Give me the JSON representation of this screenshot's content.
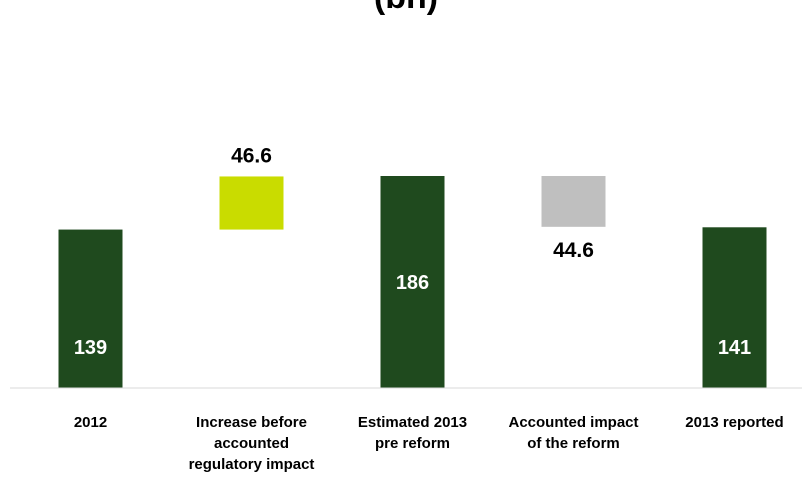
{
  "chart_data": {
    "type": "bar",
    "subtype": "waterfall",
    "title": "(bn)",
    "xlabel": "",
    "ylabel": "",
    "grid": false,
    "legend": "none",
    "categories": [
      [
        "2012"
      ],
      [
        "Increase before",
        "accounted",
        "regulatory impact"
      ],
      [
        "Estimated 2013",
        "pre reform"
      ],
      [
        "Accounted impact",
        "of the reform"
      ],
      [
        "2013 reported"
      ]
    ],
    "values": [
      139,
      46.6,
      186,
      -44.6,
      141
    ],
    "labels": [
      "139",
      "46.6",
      "186",
      "44.6",
      "141"
    ],
    "kinds": [
      "total",
      "increase",
      "total",
      "decrease",
      "total"
    ],
    "colors": {
      "total": "#1f4a1e",
      "increase": "#c9dc00",
      "decrease": "#bfbfbf"
    }
  }
}
